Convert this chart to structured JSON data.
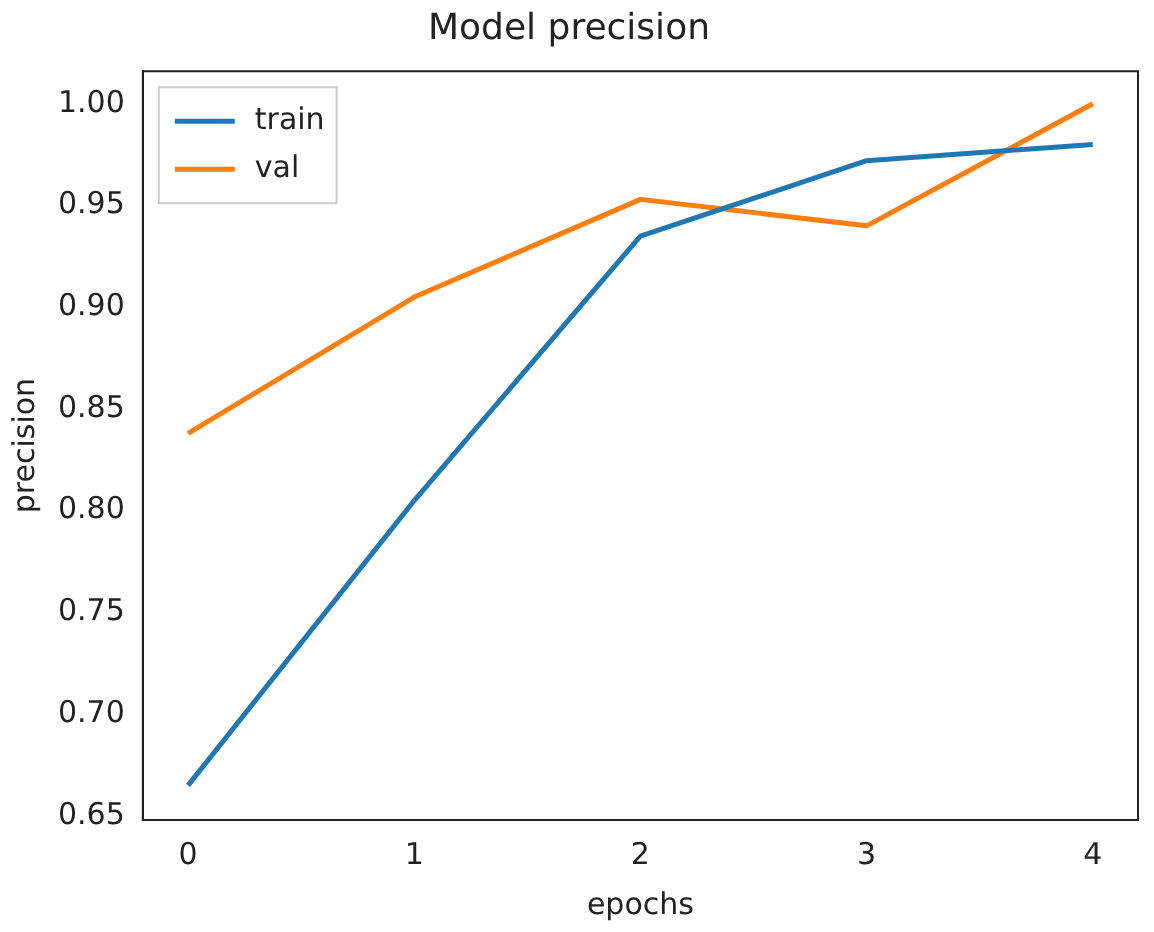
{
  "chart_data": {
    "type": "line",
    "title": "Model precision",
    "xlabel": "epochs",
    "ylabel": "precision",
    "x": [
      0,
      1,
      2,
      3,
      4
    ],
    "series": [
      {
        "name": "train",
        "color": "#1f77b4",
        "values": [
          0.665,
          0.805,
          0.935,
          0.972,
          0.98
        ]
      },
      {
        "name": "val",
        "color": "#ff7f0e",
        "values": [
          0.838,
          0.905,
          0.953,
          0.94,
          1.0
        ]
      }
    ],
    "xlim": [
      -0.2,
      4.2
    ],
    "xticks": [
      0,
      1,
      2,
      3,
      4
    ],
    "ylim": [
      0.648,
      1.016
    ],
    "yticks": [
      {
        "value": 0.65,
        "label": "0.65"
      },
      {
        "value": 0.7,
        "label": "0.70"
      },
      {
        "value": 0.75,
        "label": "0.75"
      },
      {
        "value": 0.8,
        "label": "0.80"
      },
      {
        "value": 0.85,
        "label": "0.85"
      },
      {
        "value": 0.9,
        "label": "0.90"
      },
      {
        "value": 0.95,
        "label": "0.95"
      },
      {
        "value": 1.0,
        "label": "1.00"
      }
    ],
    "grid": false,
    "legend": "top left",
    "marker": "none",
    "line_style": "solid"
  }
}
